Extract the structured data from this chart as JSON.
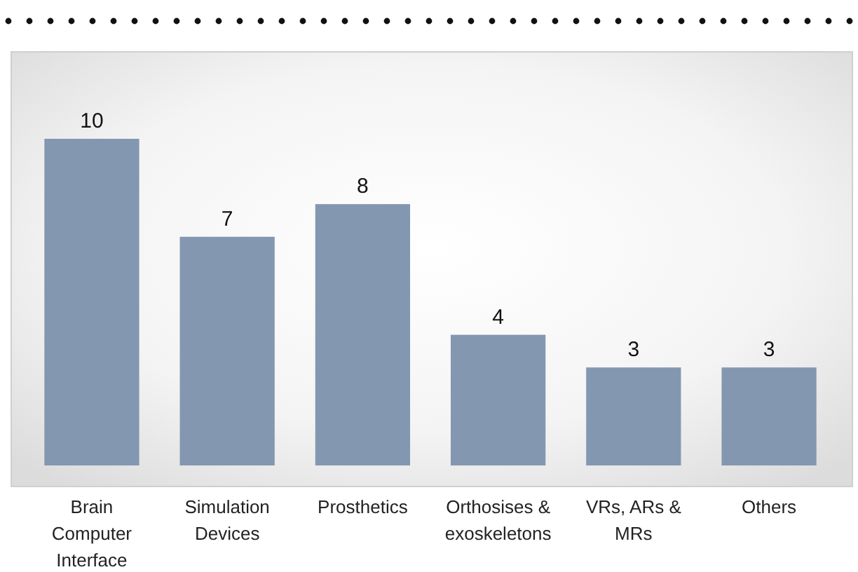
{
  "chart_data": {
    "type": "bar",
    "categories": [
      "Brain Computer Interface",
      "Simulation Devices",
      "Prosthetics",
      "Orthosises & exoskeletons",
      "VRs, ARs & MRs",
      "Others"
    ],
    "values": [
      10,
      7,
      8,
      4,
      3,
      3
    ],
    "color": "#8497b0",
    "relative": false,
    "data_labels": true
  }
}
